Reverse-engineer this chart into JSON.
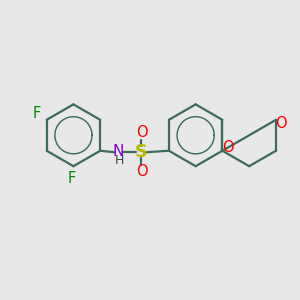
{
  "bg_color": "#e8e8e8",
  "bond_color": "#3d6b5e",
  "bond_width": 1.6,
  "S_color": "#b8b800",
  "O_color": "#ff0000",
  "N_color": "#8800cc",
  "F_color": "#008800",
  "text_fontsize": 10.5,
  "figsize": [
    3.0,
    3.0
  ],
  "dpi": 100,
  "xlim": [
    0,
    10
  ],
  "ylim": [
    0,
    10
  ]
}
